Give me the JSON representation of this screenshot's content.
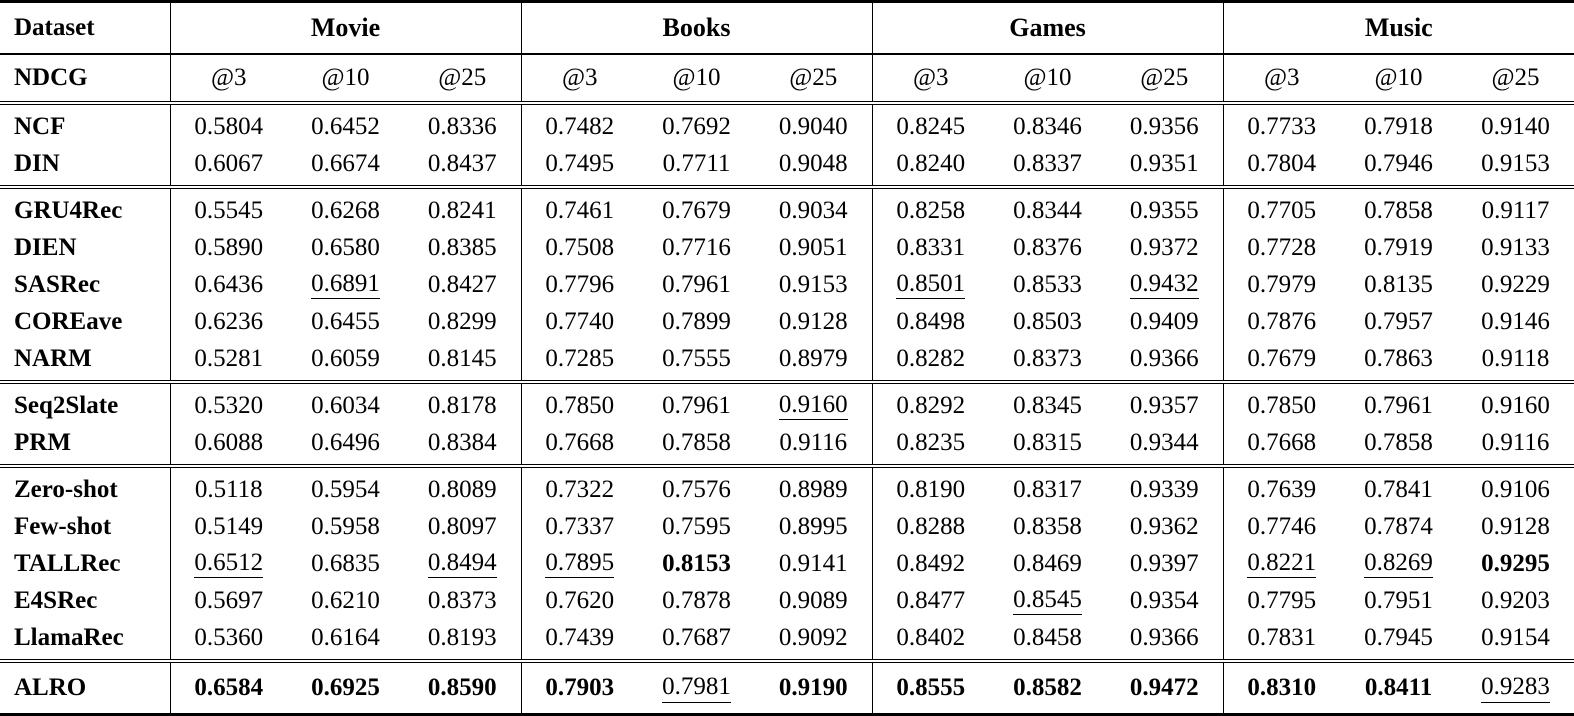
{
  "colors": {
    "text": "#000000",
    "background": "#ffffff",
    "rule": "#000000"
  },
  "table": {
    "header": {
      "dataset_label": "Dataset",
      "metric_label": "NDCG",
      "groups": [
        "Movie",
        "Books",
        "Games",
        "Music"
      ],
      "subcolumns": [
        "@3",
        "@10",
        "@25"
      ]
    },
    "cell_style_key": {
      "b": "bold",
      "u": "underline"
    },
    "sections": [
      {
        "rows": [
          {
            "label": "NCF",
            "cells": [
              "0.5804",
              "0.6452",
              "0.8336",
              "0.7482",
              "0.7692",
              "0.9040",
              "0.8245",
              "0.8346",
              "0.9356",
              "0.7733",
              "0.7918",
              "0.9140"
            ]
          },
          {
            "label": "DIN",
            "cells": [
              "0.6067",
              "0.6674",
              "0.8437",
              "0.7495",
              "0.7711",
              "0.9048",
              "0.8240",
              "0.8337",
              "0.9351",
              "0.7804",
              "0.7946",
              "0.9153"
            ]
          }
        ]
      },
      {
        "rows": [
          {
            "label": "GRU4Rec",
            "cells": [
              "0.5545",
              "0.6268",
              "0.8241",
              "0.7461",
              "0.7679",
              "0.9034",
              "0.8258",
              "0.8344",
              "0.9355",
              "0.7705",
              "0.7858",
              "0.9117"
            ]
          },
          {
            "label": "DIEN",
            "cells": [
              "0.5890",
              "0.6580",
              "0.8385",
              "0.7508",
              "0.7716",
              "0.9051",
              "0.8331",
              "0.8376",
              "0.9372",
              "0.7728",
              "0.7919",
              "0.9133"
            ]
          },
          {
            "label": "SASRec",
            "cells": [
              "0.6436",
              {
                "v": "0.6891",
                "s": "u"
              },
              "0.8427",
              "0.7796",
              "0.7961",
              "0.9153",
              {
                "v": "0.8501",
                "s": "u"
              },
              "0.8533",
              {
                "v": "0.9432",
                "s": "u"
              },
              "0.7979",
              "0.8135",
              "0.9229"
            ]
          },
          {
            "label": "COREave",
            "cells": [
              "0.6236",
              "0.6455",
              "0.8299",
              "0.7740",
              "0.7899",
              "0.9128",
              "0.8498",
              "0.8503",
              "0.9409",
              "0.7876",
              "0.7957",
              "0.9146"
            ]
          },
          {
            "label": "NARM",
            "cells": [
              "0.5281",
              "0.6059",
              "0.8145",
              "0.7285",
              "0.7555",
              "0.8979",
              "0.8282",
              "0.8373",
              "0.9366",
              "0.7679",
              "0.7863",
              "0.9118"
            ]
          }
        ]
      },
      {
        "rows": [
          {
            "label": "Seq2Slate",
            "cells": [
              "0.5320",
              "0.6034",
              "0.8178",
              "0.7850",
              "0.7961",
              {
                "v": "0.9160",
                "s": "u"
              },
              "0.8292",
              "0.8345",
              "0.9357",
              "0.7850",
              "0.7961",
              "0.9160"
            ]
          },
          {
            "label": "PRM",
            "cells": [
              "0.6088",
              "0.6496",
              "0.8384",
              "0.7668",
              "0.7858",
              "0.9116",
              "0.8235",
              "0.8315",
              "0.9344",
              "0.7668",
              "0.7858",
              "0.9116"
            ]
          }
        ]
      },
      {
        "rows": [
          {
            "label": "Zero-shot",
            "cells": [
              "0.5118",
              "0.5954",
              "0.8089",
              "0.7322",
              "0.7576",
              "0.8989",
              "0.8190",
              "0.8317",
              "0.9339",
              "0.7639",
              "0.7841",
              "0.9106"
            ]
          },
          {
            "label": "Few-shot",
            "cells": [
              "0.5149",
              "0.5958",
              "0.8097",
              "0.7337",
              "0.7595",
              "0.8995",
              "0.8288",
              "0.8358",
              "0.9362",
              "0.7746",
              "0.7874",
              "0.9128"
            ]
          },
          {
            "label": "TALLRec",
            "cells": [
              {
                "v": "0.6512",
                "s": "u"
              },
              "0.6835",
              {
                "v": "0.8494",
                "s": "u"
              },
              {
                "v": "0.7895",
                "s": "u"
              },
              {
                "v": "0.8153",
                "s": "b"
              },
              "0.9141",
              "0.8492",
              "0.8469",
              "0.9397",
              {
                "v": "0.8221",
                "s": "u"
              },
              {
                "v": "0.8269",
                "s": "u"
              },
              {
                "v": "0.9295",
                "s": "b"
              }
            ]
          },
          {
            "label": "E4SRec",
            "cells": [
              "0.5697",
              "0.6210",
              "0.8373",
              "0.7620",
              "0.7878",
              "0.9089",
              "0.8477",
              {
                "v": "0.8545",
                "s": "u"
              },
              "0.9354",
              "0.7795",
              "0.7951",
              "0.9203"
            ]
          },
          {
            "label": "LlamaRec",
            "cells": [
              "0.5360",
              "0.6164",
              "0.8193",
              "0.7439",
              "0.7687",
              "0.9092",
              "0.8402",
              "0.8458",
              "0.9366",
              "0.7831",
              "0.7945",
              "0.9154"
            ]
          }
        ]
      },
      {
        "final": true,
        "rows": [
          {
            "label": "ALRO",
            "cells": [
              {
                "v": "0.6584",
                "s": "b"
              },
              {
                "v": "0.6925",
                "s": "b"
              },
              {
                "v": "0.8590",
                "s": "b"
              },
              {
                "v": "0.7903",
                "s": "b"
              },
              {
                "v": "0.7981",
                "s": "u"
              },
              {
                "v": "0.9190",
                "s": "b"
              },
              {
                "v": "0.8555",
                "s": "b"
              },
              {
                "v": "0.8582",
                "s": "b"
              },
              {
                "v": "0.9472",
                "s": "b"
              },
              {
                "v": "0.8310",
                "s": "b"
              },
              {
                "v": "0.8411",
                "s": "b"
              },
              {
                "v": "0.9283",
                "s": "u"
              }
            ]
          }
        ]
      }
    ]
  }
}
